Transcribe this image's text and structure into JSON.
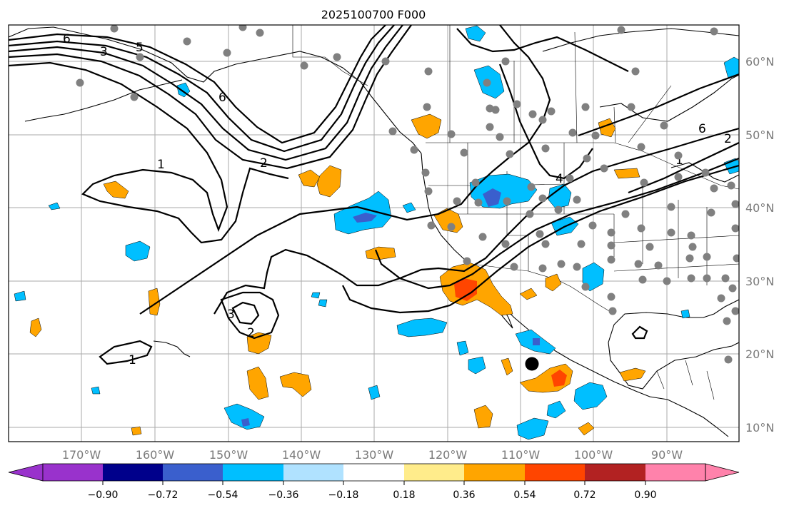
{
  "title": "2025100700 F000",
  "lon_ticks": [
    "170°W",
    "160°W",
    "150°W",
    "140°W",
    "130°W",
    "120°W",
    "110°W",
    "100°W",
    "90°W"
  ],
  "lat_ticks": [
    "60°N",
    "50°N",
    "40°N",
    "30°N",
    "20°N",
    "10°N"
  ],
  "colorbar": {
    "ticks": [
      "−0.90",
      "−0.72",
      "−0.54",
      "−0.36",
      "−0.18",
      "0.18",
      "0.36",
      "0.54",
      "0.72",
      "0.90"
    ],
    "colors": [
      "#9932cc",
      "#00008b",
      "#3a5fcd",
      "#00bfff",
      "#b0e2ff",
      "#ffffff",
      "#ffec8b",
      "#ffa500",
      "#ff4500",
      "#b22222",
      "#ff82ab"
    ]
  },
  "contour_labels": [
    "6",
    "3",
    "5",
    "6",
    "1",
    "2",
    "6",
    "2",
    "4",
    "1",
    "3",
    "2",
    "1"
  ],
  "styles": {
    "grid": "#aaaaaa",
    "station": "#808080",
    "tick_text": "#7a7a7a"
  },
  "chart_data": {
    "type": "contour-map",
    "title": "2025100700 F000",
    "projection": "PlateCarree",
    "lon_range": [
      -180,
      -80
    ],
    "lat_range": [
      8,
      65
    ],
    "contour_levels": [
      1,
      2,
      3,
      4,
      5,
      6
    ],
    "fill_levels": [
      -0.9,
      -0.72,
      -0.54,
      -0.36,
      -0.18,
      0.18,
      0.36,
      0.54,
      0.72,
      0.9
    ],
    "marker": {
      "lon": -108,
      "lat": 18.5,
      "style": "large black dot"
    }
  }
}
